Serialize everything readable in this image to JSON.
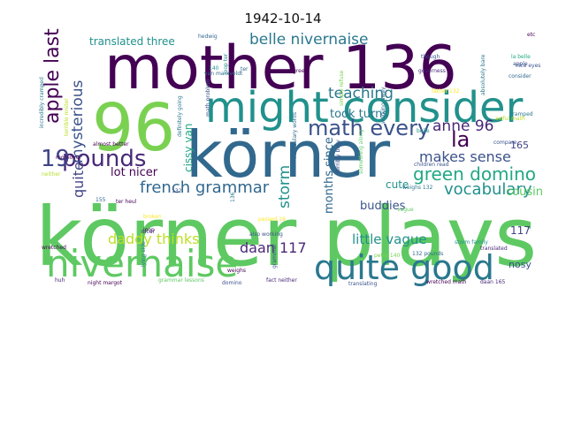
{
  "chart_data": {
    "type": "wordcloud",
    "title": "1942-10-14",
    "colormap": "viridis",
    "words": [
      {
        "text": "körner plays",
        "weight": 100,
        "color": "#5ec962"
      },
      {
        "text": "mother 136",
        "weight": 92,
        "color": "#440154"
      },
      {
        "text": "körner",
        "weight": 92,
        "color": "#31688e"
      },
      {
        "text": "96",
        "weight": 90,
        "color": "#7ad151"
      },
      {
        "text": "might consider",
        "weight": 60,
        "color": "#21918c"
      },
      {
        "text": "nivernaise",
        "weight": 52,
        "color": "#5ec962"
      },
      {
        "text": "quite good",
        "weight": 48,
        "color": "#2a788e"
      },
      {
        "text": "pounds",
        "weight": 34,
        "color": "#482878"
      },
      {
        "text": "19",
        "weight": 33,
        "color": "#414487"
      },
      {
        "text": "math every",
        "weight": 30,
        "color": "#3b528b"
      },
      {
        "text": "apple last",
        "weight": 29,
        "color": "#440154"
      },
      {
        "text": "belle nivernaise",
        "weight": 27,
        "color": "#2a788e"
      },
      {
        "text": "green domino",
        "weight": 26,
        "color": "#22a884"
      },
      {
        "text": "la",
        "weight": 26,
        "color": "#440154"
      },
      {
        "text": "french grammar",
        "weight": 24,
        "color": "#31688e"
      },
      {
        "text": "vocabulary",
        "weight": 23,
        "color": "#21918c"
      },
      {
        "text": "teaching",
        "weight": 22,
        "color": "#2a788e"
      },
      {
        "text": "mysterious",
        "weight": 22,
        "color": "#3b528b"
      },
      {
        "text": "anne 96",
        "weight": 21,
        "color": "#482878"
      },
      {
        "text": "makes sense",
        "weight": 21,
        "color": "#3b528b"
      },
      {
        "text": "storm",
        "weight": 20,
        "color": "#21918c"
      },
      {
        "text": "quite",
        "weight": 19,
        "color": "#414487"
      },
      {
        "text": "daan 117",
        "weight": 19,
        "color": "#482878"
      },
      {
        "text": "daddy thinks",
        "weight": 19,
        "color": "#bddf26"
      },
      {
        "text": "little vague",
        "weight": 19,
        "color": "#21918c"
      },
      {
        "text": "translated three",
        "weight": 17,
        "color": "#21918c"
      },
      {
        "text": "took turns",
        "weight": 17,
        "color": "#2a788e"
      },
      {
        "text": "lot nicer",
        "weight": 16,
        "color": "#440154"
      },
      {
        "text": "buddies",
        "weight": 16,
        "color": "#3b528b"
      },
      {
        "text": "cousin",
        "weight": 16,
        "color": "#5ec962"
      },
      {
        "text": "months since",
        "weight": 15,
        "color": "#31688e"
      },
      {
        "text": "cute",
        "weight": 15,
        "color": "#21918c"
      },
      {
        "text": "cissy van",
        "weight": 14,
        "color": "#22a884"
      },
      {
        "text": "117",
        "weight": 14,
        "color": "#414487"
      },
      {
        "text": "165",
        "weight": 13,
        "color": "#414487"
      },
      {
        "text": "nosy",
        "weight": 13,
        "color": "#3b528b"
      },
      {
        "text": "van marxveldt",
        "weight": 8,
        "color": "#31688e"
      },
      {
        "text": "incredibly cramped",
        "weight": 7,
        "color": "#2a788e"
      },
      {
        "text": "terrible mister",
        "weight": 7,
        "color": "#bddf26"
      },
      {
        "text": "hedwig",
        "weight": 7,
        "color": "#31688e"
      },
      {
        "text": "math problem",
        "weight": 7,
        "color": "#3b528b"
      },
      {
        "text": "joop ter",
        "weight": 7,
        "color": "#21918c"
      },
      {
        "text": "green",
        "weight": 7,
        "color": "#440154"
      },
      {
        "text": "though",
        "weight": 7,
        "color": "#3b528b"
      },
      {
        "text": "governess",
        "weight": 7,
        "color": "#482878"
      },
      {
        "text": "absolutely bare",
        "weight": 7,
        "color": "#2a788e"
      },
      {
        "text": "nice eyes",
        "weight": 7,
        "color": "#3b528b"
      },
      {
        "text": "etc",
        "weight": 7,
        "color": "#440154"
      },
      {
        "text": "la belle",
        "weight": 7,
        "color": "#22a884"
      },
      {
        "text": "apple",
        "weight": 7,
        "color": "#3b528b"
      },
      {
        "text": "consider",
        "weight": 7,
        "color": "#31688e"
      },
      {
        "text": "cramped",
        "weight": 7,
        "color": "#2a788e"
      },
      {
        "text": "father 132",
        "weight": 7,
        "color": "#fde725"
      },
      {
        "text": "awful math",
        "weight": 7,
        "color": "#bddf26"
      },
      {
        "text": "belle",
        "weight": 7,
        "color": "#21918c"
      },
      {
        "text": "compare",
        "weight": 7,
        "color": "#3b528b"
      },
      {
        "text": "simply refuse",
        "weight": 7,
        "color": "#7ad151"
      },
      {
        "text": "working away",
        "weight": 7,
        "color": "#31688e"
      },
      {
        "text": "almost better",
        "weight": 7,
        "color": "#440154"
      },
      {
        "text": "definitely going",
        "weight": 7,
        "color": "#2a788e"
      },
      {
        "text": "moreover",
        "weight": 7,
        "color": "#440154"
      },
      {
        "text": "neither",
        "weight": 7,
        "color": "#b5de2b"
      },
      {
        "text": "155",
        "weight": 7,
        "color": "#31688e"
      },
      {
        "text": "ter heul",
        "weight": 7,
        "color": "#440154"
      },
      {
        "text": "132",
        "weight": 7,
        "color": "#3b528b"
      },
      {
        "text": "joop",
        "weight": 7,
        "color": "#440154"
      },
      {
        "text": "nicer",
        "weight": 7,
        "color": "#482878"
      },
      {
        "text": "broken",
        "weight": 7,
        "color": "#fde725"
      },
      {
        "text": "vocabulary words",
        "weight": 7,
        "color": "#31688e"
      },
      {
        "text": "terribly busy",
        "weight": 7,
        "color": "#3b528b"
      },
      {
        "text": "something along",
        "weight": 7,
        "color": "#5ec962"
      },
      {
        "text": "children read",
        "weight": 7,
        "color": "#3b528b"
      },
      {
        "text": "weighs 132",
        "weight": 7,
        "color": "#2a788e"
      },
      {
        "text": "vague",
        "weight": 7,
        "color": "#5ec962"
      },
      {
        "text": "lying side",
        "weight": 7,
        "color": "#2a788e"
      },
      {
        "text": "weighs",
        "weight": 7,
        "color": "#440154"
      },
      {
        "text": "passed 19",
        "weight": 7,
        "color": "#fde725"
      },
      {
        "text": "also working",
        "weight": 7,
        "color": "#3b528b"
      },
      {
        "text": "storm family",
        "weight": 7,
        "color": "#21918c"
      },
      {
        "text": "translated",
        "weight": 7,
        "color": "#482878"
      },
      {
        "text": "peter 140",
        "weight": 7,
        "color": "#7ad151"
      },
      {
        "text": "132 pounds",
        "weight": 7,
        "color": "#31688e"
      },
      {
        "text": "wretched",
        "weight": 7,
        "color": "#440154"
      },
      {
        "text": "huh",
        "weight": 7,
        "color": "#482878"
      },
      {
        "text": "night margot",
        "weight": 7,
        "color": "#440154"
      },
      {
        "text": "grammar lessons",
        "weight": 7,
        "color": "#5ec962"
      },
      {
        "text": "domino",
        "weight": 7,
        "color": "#3b528b"
      },
      {
        "text": "fact neither",
        "weight": 7,
        "color": "#482878"
      },
      {
        "text": "translating",
        "weight": 7,
        "color": "#3b528b"
      },
      {
        "text": "wretched math",
        "weight": 7,
        "color": "#440154"
      },
      {
        "text": "daan 165",
        "weight": 7,
        "color": "#482878"
      },
      {
        "text": "grammar",
        "weight": 7,
        "color": "#3b528b"
      },
      {
        "text": "136",
        "weight": 7,
        "color": "#2a788e"
      },
      {
        "text": "140",
        "weight": 7,
        "color": "#21918c"
      },
      {
        "text": "ter",
        "weight": 7,
        "color": "#31688e"
      }
    ]
  }
}
